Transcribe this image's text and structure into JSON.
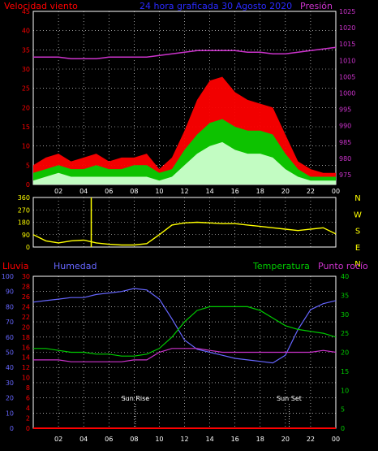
{
  "colors": {
    "wind": "#ff0000",
    "wind_mid": "#00cc00",
    "wind_low": "#ccffcc",
    "pressure": "#cc33cc",
    "direction": "#ffff00",
    "humidity": "#6666ff",
    "temperature": "#00cc00",
    "dewpoint": "#cc33cc",
    "rain": "#ff0000",
    "title": "#2a2aff",
    "axis_left_top": "#ff0000",
    "axis_right_top": "#cc33cc",
    "grid": "#ffffff",
    "compass": "#ffff00"
  },
  "chart_data": [
    {
      "type": "area",
      "title": "24 hora graficada 30 Agosto 2020",
      "ylabel": "Velocidad viento",
      "y2label": "Presión",
      "x_ticks": [
        "02",
        "04",
        "06",
        "08",
        "10",
        "12",
        "14",
        "16",
        "18",
        "20",
        "22",
        "00"
      ],
      "ylim": [
        0,
        45
      ],
      "y_ticks": [
        0,
        5,
        10,
        15,
        20,
        25,
        30,
        35,
        40,
        45
      ],
      "y2lim": [
        972,
        1025
      ],
      "y2_ticks": [
        975,
        980,
        985,
        990,
        995,
        1000,
        1005,
        1010,
        1015,
        1020,
        1025
      ],
      "x_hours": [
        0,
        1,
        2,
        3,
        4,
        5,
        6,
        7,
        8,
        9,
        10,
        11,
        12,
        13,
        14,
        15,
        16,
        17,
        18,
        19,
        20,
        21,
        22,
        23,
        24
      ],
      "series": [
        {
          "name": "Velocidad viento",
          "key": "gust",
          "values": [
            5,
            7,
            8,
            6,
            7,
            8,
            6,
            7,
            7,
            8,
            4,
            7,
            14,
            22,
            27,
            28,
            24,
            22,
            21,
            20,
            13,
            6,
            4,
            3,
            3
          ]
        },
        {
          "name": "",
          "key": "avg",
          "values": [
            3,
            4,
            5,
            4,
            4,
            5,
            4,
            4,
            5,
            5,
            3,
            4,
            9,
            13,
            16,
            17,
            15,
            14,
            14,
            13,
            8,
            4,
            2,
            2,
            2
          ]
        },
        {
          "name": "",
          "key": "low",
          "values": [
            1,
            2,
            3,
            2,
            2,
            2,
            2,
            2,
            2,
            2,
            1,
            2,
            5,
            8,
            10,
            11,
            9,
            8,
            8,
            7,
            4,
            2,
            1,
            1,
            1
          ]
        },
        {
          "name": "Presión",
          "key": "pressure",
          "axis": "right",
          "values": [
            1011,
            1011,
            1011,
            1010.5,
            1010.5,
            1010.5,
            1011,
            1011,
            1011,
            1011,
            1011.5,
            1012,
            1012.5,
            1013,
            1013,
            1013,
            1013,
            1012.5,
            1012.5,
            1012,
            1012,
            1012.5,
            1013,
            1013.5,
            1014
          ]
        }
      ]
    },
    {
      "type": "line",
      "title": "",
      "ylim": [
        0,
        360
      ],
      "y_ticks": [
        0,
        90,
        180,
        270,
        360
      ],
      "compass": [
        "N",
        "W",
        "S",
        "E",
        "N"
      ],
      "x_hours": [
        0,
        1,
        2,
        3,
        4,
        5,
        6,
        7,
        8,
        9,
        10,
        11,
        12,
        13,
        14,
        15,
        16,
        17,
        18,
        19,
        20,
        21,
        22,
        23,
        24
      ],
      "series": [
        {
          "name": "",
          "key": "direction",
          "values": [
            90,
            45,
            30,
            45,
            50,
            30,
            20,
            15,
            15,
            25,
            90,
            160,
            175,
            180,
            175,
            170,
            170,
            160,
            150,
            140,
            130,
            120,
            130,
            140,
            95
          ],
          "spike": {
            "x": 4.6,
            "y": 360
          }
        }
      ]
    },
    {
      "type": "line",
      "title": "",
      "ylabel_left_outer": "Lluvia",
      "ylabel_left_inner": "Humedad",
      "ylabel_right_a": "Temperatura",
      "ylabel_right_b": "Punto rocío",
      "x_ticks": [
        "02",
        "04",
        "06",
        "08",
        "10",
        "12",
        "14",
        "16",
        "18",
        "20",
        "22",
        "00"
      ],
      "humidity_lim": [
        0,
        100
      ],
      "humidity_ticks": [
        0,
        10,
        20,
        30,
        40,
        50,
        60,
        70,
        80,
        90,
        100
      ],
      "rain_lim": [
        0,
        30
      ],
      "rain_ticks": [
        0,
        2,
        4,
        6,
        8,
        10,
        12,
        14,
        16,
        18,
        20,
        22,
        24,
        26,
        28,
        30
      ],
      "temp_lim": [
        0,
        40
      ],
      "temp_ticks": [
        0,
        5,
        10,
        15,
        20,
        25,
        30,
        35,
        40
      ],
      "annotations": [
        {
          "label": "Sun Rise",
          "x": 8.1
        },
        {
          "label": "Sun Set",
          "x": 20.3
        }
      ],
      "x_hours": [
        0,
        1,
        2,
        3,
        4,
        5,
        6,
        7,
        8,
        9,
        10,
        11,
        12,
        13,
        14,
        15,
        16,
        17,
        18,
        19,
        20,
        21,
        22,
        23,
        24
      ],
      "series": [
        {
          "name": "Humedad",
          "key": "humidity",
          "axis": "humidity",
          "values": [
            83,
            84,
            85,
            86,
            86,
            88,
            89,
            90,
            92,
            91,
            85,
            72,
            58,
            52,
            50,
            48,
            46,
            45,
            44,
            43,
            48,
            65,
            78,
            82,
            84
          ]
        },
        {
          "name": "Temperatura",
          "key": "temperature",
          "axis": "temp",
          "values": [
            21,
            21,
            20.5,
            20,
            20,
            19.5,
            19.5,
            19,
            19,
            19.5,
            21,
            24,
            28,
            31,
            32,
            32,
            32,
            32,
            31,
            29,
            27,
            26,
            25.5,
            25,
            24
          ]
        },
        {
          "name": "Punto rocío",
          "key": "dewpoint",
          "axis": "temp",
          "values": [
            18,
            18,
            18,
            17.5,
            17.5,
            17.5,
            17.5,
            17.5,
            18,
            18,
            20,
            21,
            21,
            21,
            20.5,
            20,
            20,
            20,
            20,
            20,
            20,
            20,
            20,
            20.5,
            20
          ]
        },
        {
          "name": "Lluvia",
          "key": "rain",
          "axis": "rain",
          "values": [
            0,
            0,
            0,
            0,
            0,
            0,
            0,
            0,
            0,
            0,
            0,
            0,
            0,
            0,
            0,
            0,
            0,
            0,
            0,
            0,
            0,
            0,
            0,
            0,
            0
          ]
        }
      ]
    }
  ]
}
